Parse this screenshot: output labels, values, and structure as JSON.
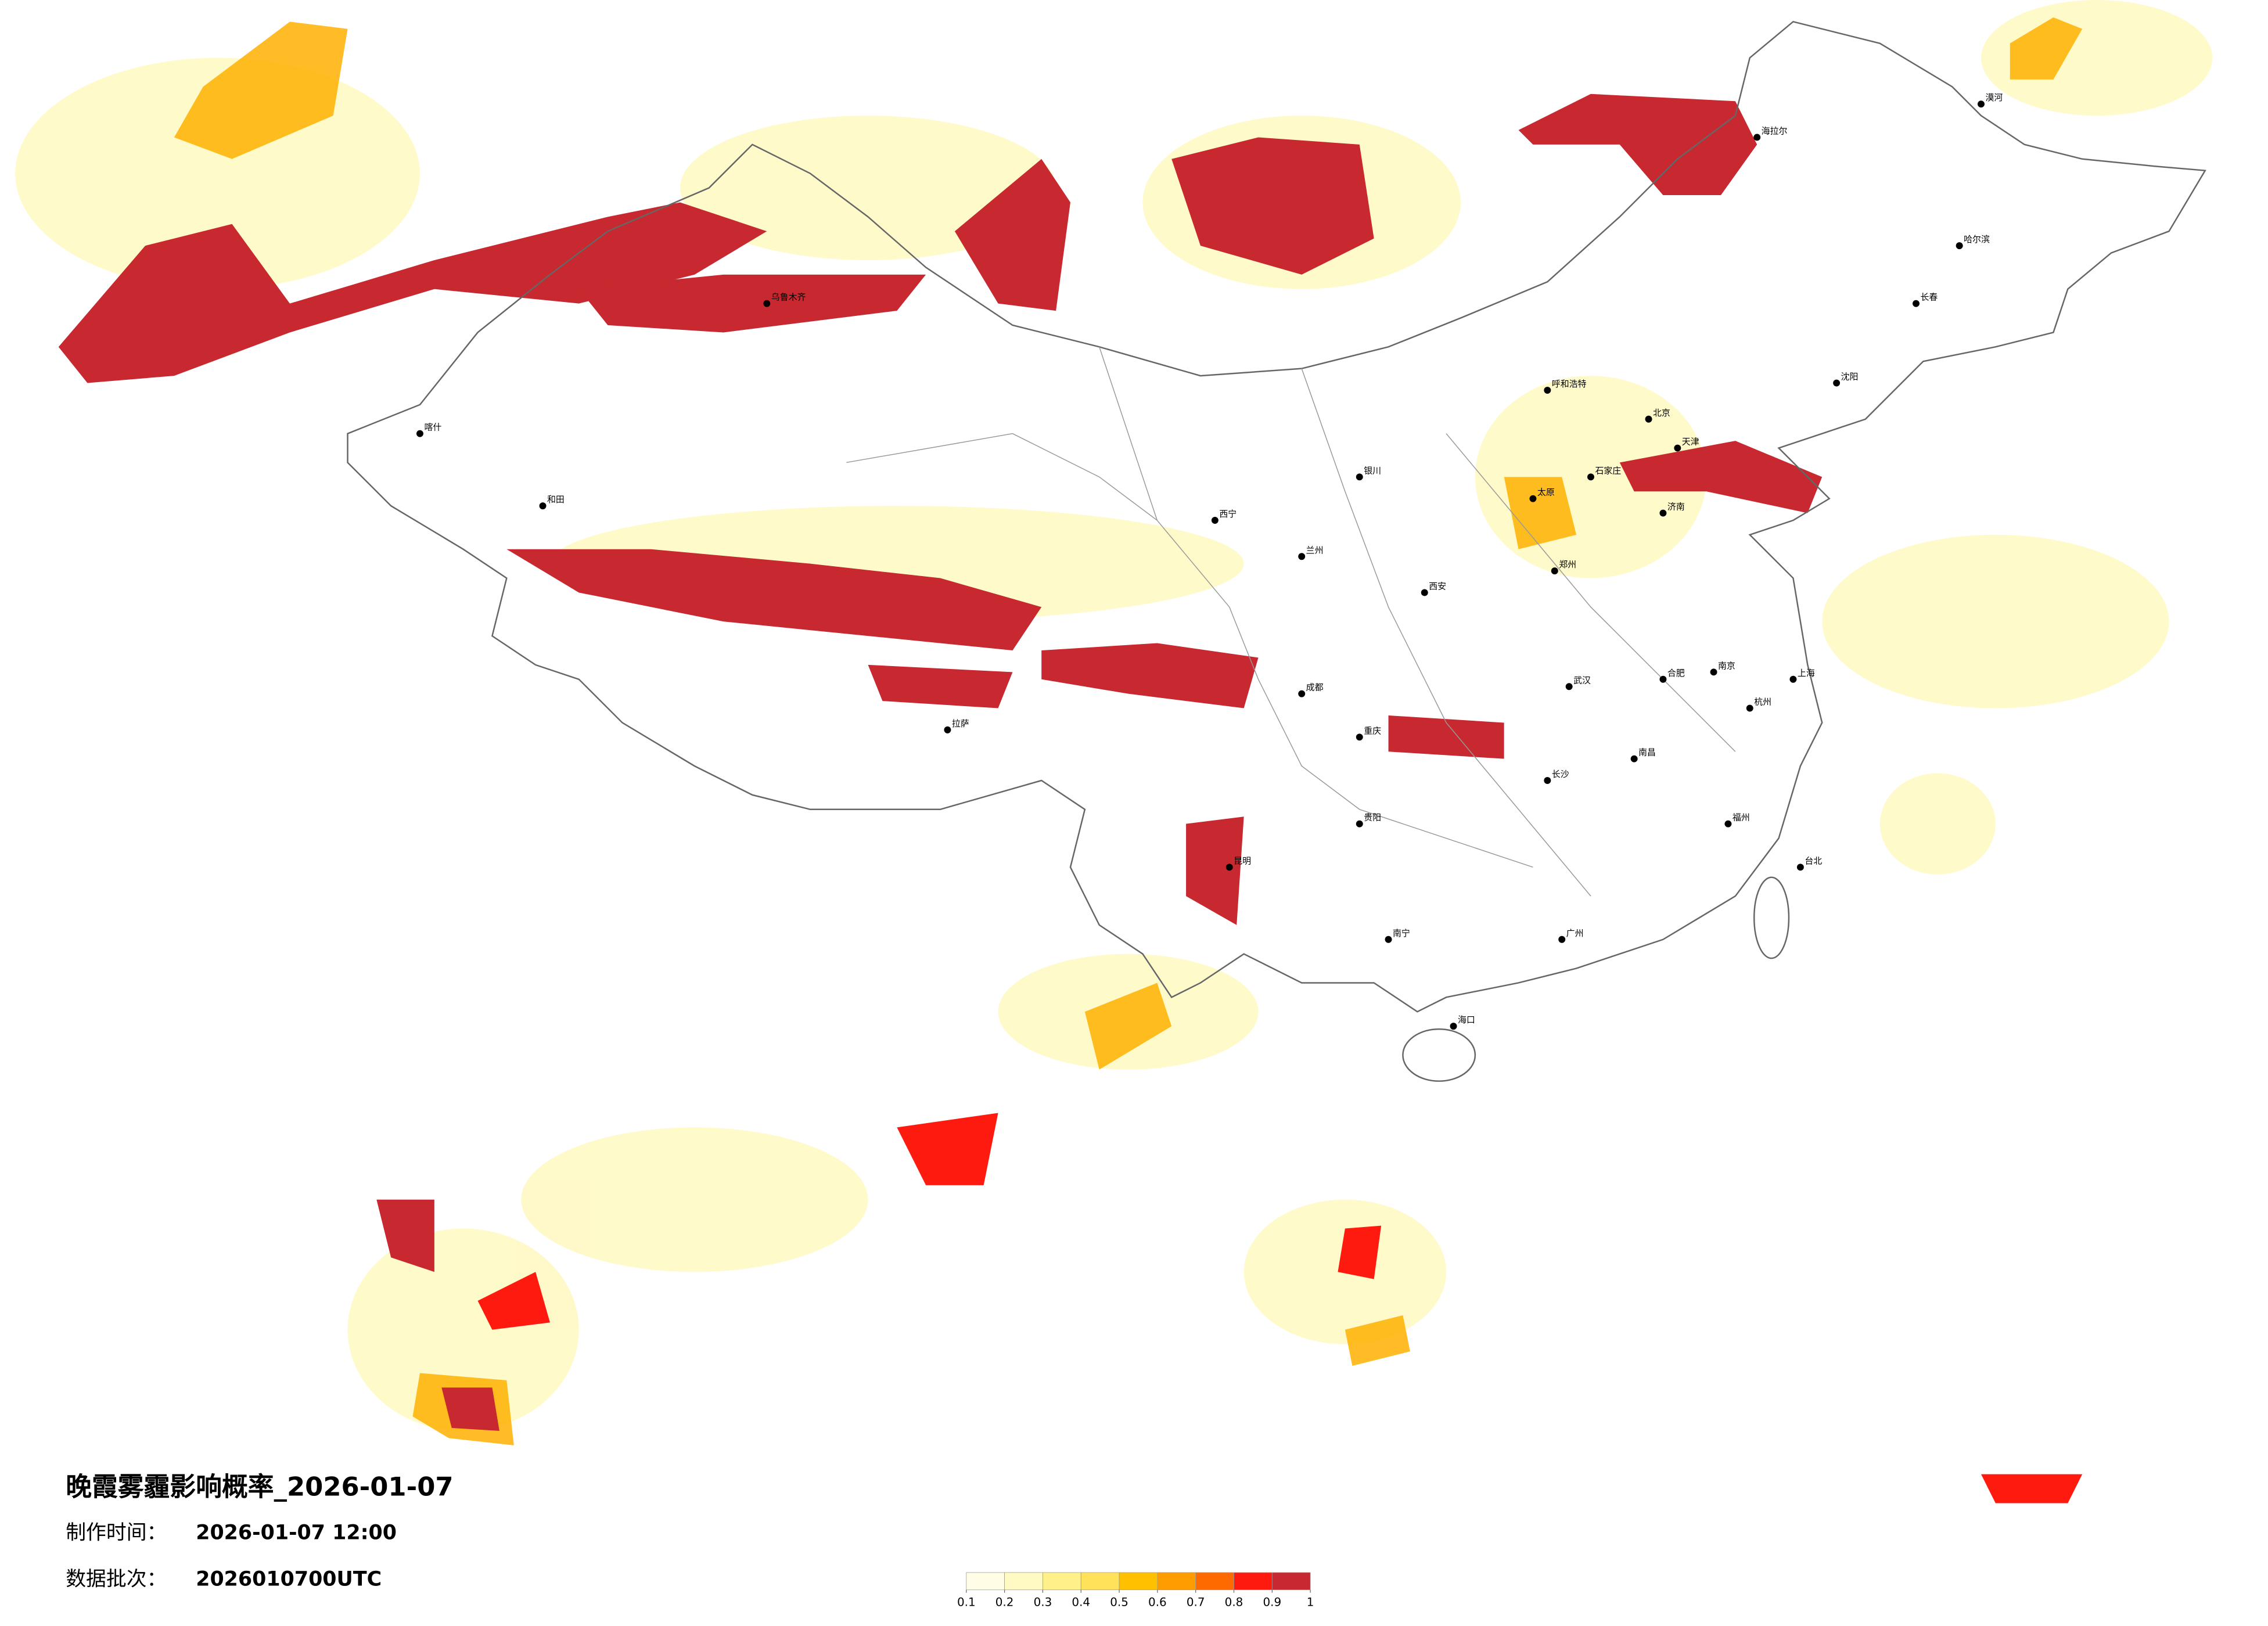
{
  "title": "晚霞雾霾影响概率_2026-01-07",
  "made_time": {
    "label": "制作时间：",
    "value": "2026-01-07 12:00"
  },
  "batch": {
    "label": "数据批次：",
    "value": "2026010700UTC"
  },
  "legend": {
    "ticks": [
      0.1,
      0.2,
      0.3,
      0.4,
      0.5,
      0.6,
      0.7,
      0.8,
      0.9,
      1
    ],
    "colors": [
      "#fffde6",
      "#fff9c4",
      "#fff08a",
      "#ffe15a",
      "#ffc000",
      "#ff9c00",
      "#ff6a00",
      "#ff1a10",
      "#c8282f"
    ]
  },
  "cities": [
    "北京",
    "天津",
    "石家庄",
    "太原",
    "济南",
    "郑州",
    "西安",
    "兰州",
    "西宁",
    "银川",
    "呼和浩特",
    "沈阳",
    "长春",
    "哈尔滨",
    "乌鲁木齐",
    "拉萨",
    "成都",
    "重庆",
    "贵阳",
    "昆明",
    "南宁",
    "广州",
    "海口",
    "福州",
    "台北",
    "杭州",
    "上海",
    "南京",
    "合肥",
    "武汉",
    "长沙",
    "南昌",
    "喀什",
    "和田",
    "漠河",
    "海拉尔"
  ]
}
